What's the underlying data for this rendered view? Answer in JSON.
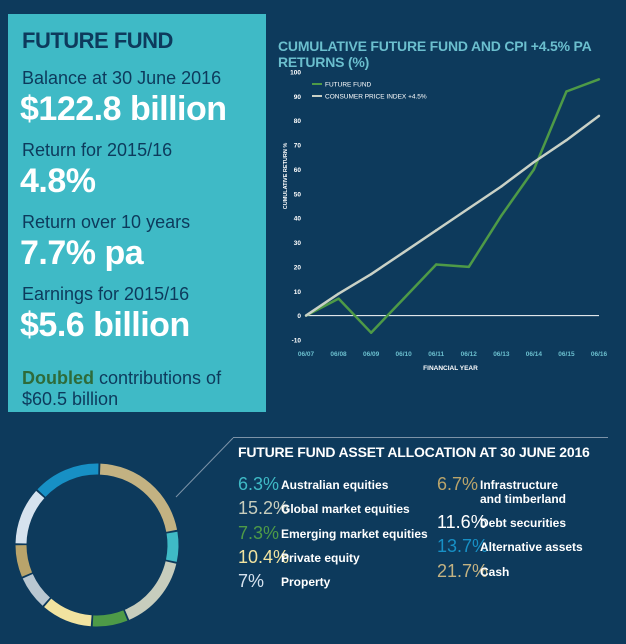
{
  "panel": {
    "title": "FUTURE FUND",
    "balance_label": "Balance at 30 June 2016",
    "balance_value": "$122.8 billion",
    "return_label": "Return for 2015/16",
    "return_value": "4.8%",
    "return10_label": "Return over 10 years",
    "return10_value": "7.7% pa",
    "earnings_label": "Earnings for 2015/16",
    "earnings_value": "$5.6 billion",
    "doubled_strong": "Doubled",
    "doubled_rest": " contributions of $60.5 billion"
  },
  "chart_data": {
    "type": "line",
    "title": "CUMULATIVE FUTURE FUND AND CPI +4.5% PA RETURNS (%)",
    "xlabel": "FINANCIAL YEAR",
    "ylabel": "CUMULATIVE RETURN %",
    "x": [
      "06/07",
      "06/08",
      "06/09",
      "06/10",
      "06/11",
      "06/12",
      "06/13",
      "06/14",
      "06/15",
      "06/16"
    ],
    "ylim": [
      -10,
      100
    ],
    "yticks": [
      -10,
      0,
      10,
      20,
      30,
      40,
      50,
      60,
      70,
      80,
      90,
      100
    ],
    "series": [
      {
        "name": "FUTURE FUND",
        "color": "#4e9a47",
        "values": [
          0,
          7,
          -7,
          7,
          21,
          20,
          41,
          60,
          92,
          97
        ]
      },
      {
        "name": "CONSUMER PRICE INDEX +4.5%",
        "color": "#c9d1c6",
        "values": [
          0,
          9,
          17,
          26,
          35,
          44,
          53,
          63,
          72,
          82
        ]
      }
    ],
    "legend": "top-left",
    "grid": false
  },
  "allocation": {
    "title": "FUTURE FUND ASSET ALLOCATION AT 30 JUNE 2016",
    "items": [
      {
        "pct": "6.3%",
        "name": "Australian equities",
        "color": "#3fbac6"
      },
      {
        "pct": "15.2%",
        "name": "Global market equities",
        "color": "#c7cdbd"
      },
      {
        "pct": "7.3%",
        "name": "Emerging market equities",
        "color": "#4e9a47"
      },
      {
        "pct": "10.4%",
        "name": "Private equity",
        "color": "#f1e3a0"
      },
      {
        "pct": "7%",
        "name": "Property",
        "color": "#d6e2ee"
      },
      {
        "pct": "6.7%",
        "name": "Infrastructure and timberland",
        "color": "#b9a46b"
      },
      {
        "pct": "11.6%",
        "name": "Debt securities",
        "color": "#ffffff"
      },
      {
        "pct": "13.7%",
        "name": "Alternative assets",
        "color": "#1790c5"
      },
      {
        "pct": "21.7%",
        "name": "Cash",
        "color": "#c3b282"
      }
    ],
    "donut": [
      {
        "value": 21.7,
        "color": "#c3b282"
      },
      {
        "value": 6.3,
        "color": "#3fbac6"
      },
      {
        "value": 15.2,
        "color": "#c7cdbd"
      },
      {
        "value": 7.3,
        "color": "#4e9a47"
      },
      {
        "value": 10.4,
        "color": "#f1e3a0"
      },
      {
        "value": 7.0,
        "color": "#b9c7d1"
      },
      {
        "value": 6.7,
        "color": "#b9a46b"
      },
      {
        "value": 11.6,
        "color": "#d6e2ee"
      },
      {
        "value": 13.7,
        "color": "#1790c5"
      }
    ]
  }
}
